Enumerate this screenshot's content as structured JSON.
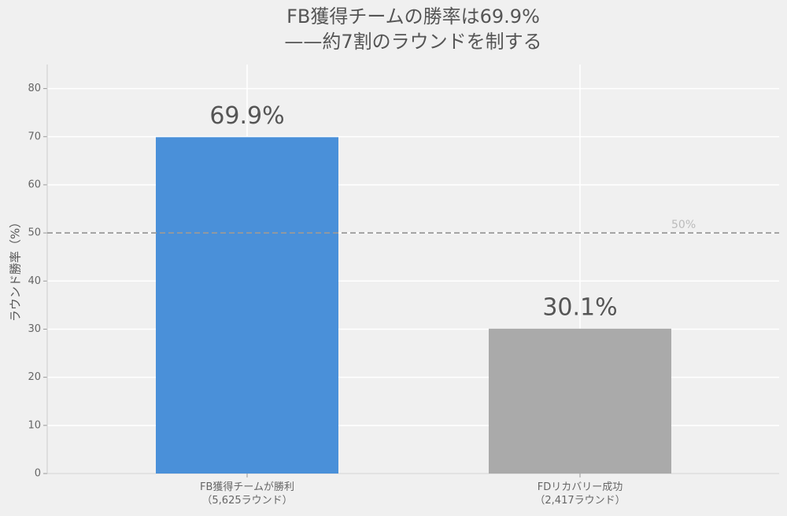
{
  "chart_data": {
    "type": "bar",
    "title": "FB獲得チームの勝率は69.9%\n——約7割のラウンドを制する",
    "y_label": "ラウンド勝率（%）",
    "categories": [
      "FB獲得チームが勝利\n（5,625ラウンド）",
      "FDリカバリー成功\n（2,417ラウンド）"
    ],
    "values": [
      69.9,
      30.1
    ],
    "value_labels": [
      "69.9%",
      "30.1%"
    ],
    "colors": [
      "#4a90d9",
      "#aaaaaa"
    ],
    "ylim": [
      0,
      85
    ],
    "yticks": [
      0,
      10,
      20,
      30,
      40,
      50,
      60,
      70,
      80
    ],
    "grid": true,
    "reference_line": {
      "value": 50,
      "label": "50%"
    }
  }
}
